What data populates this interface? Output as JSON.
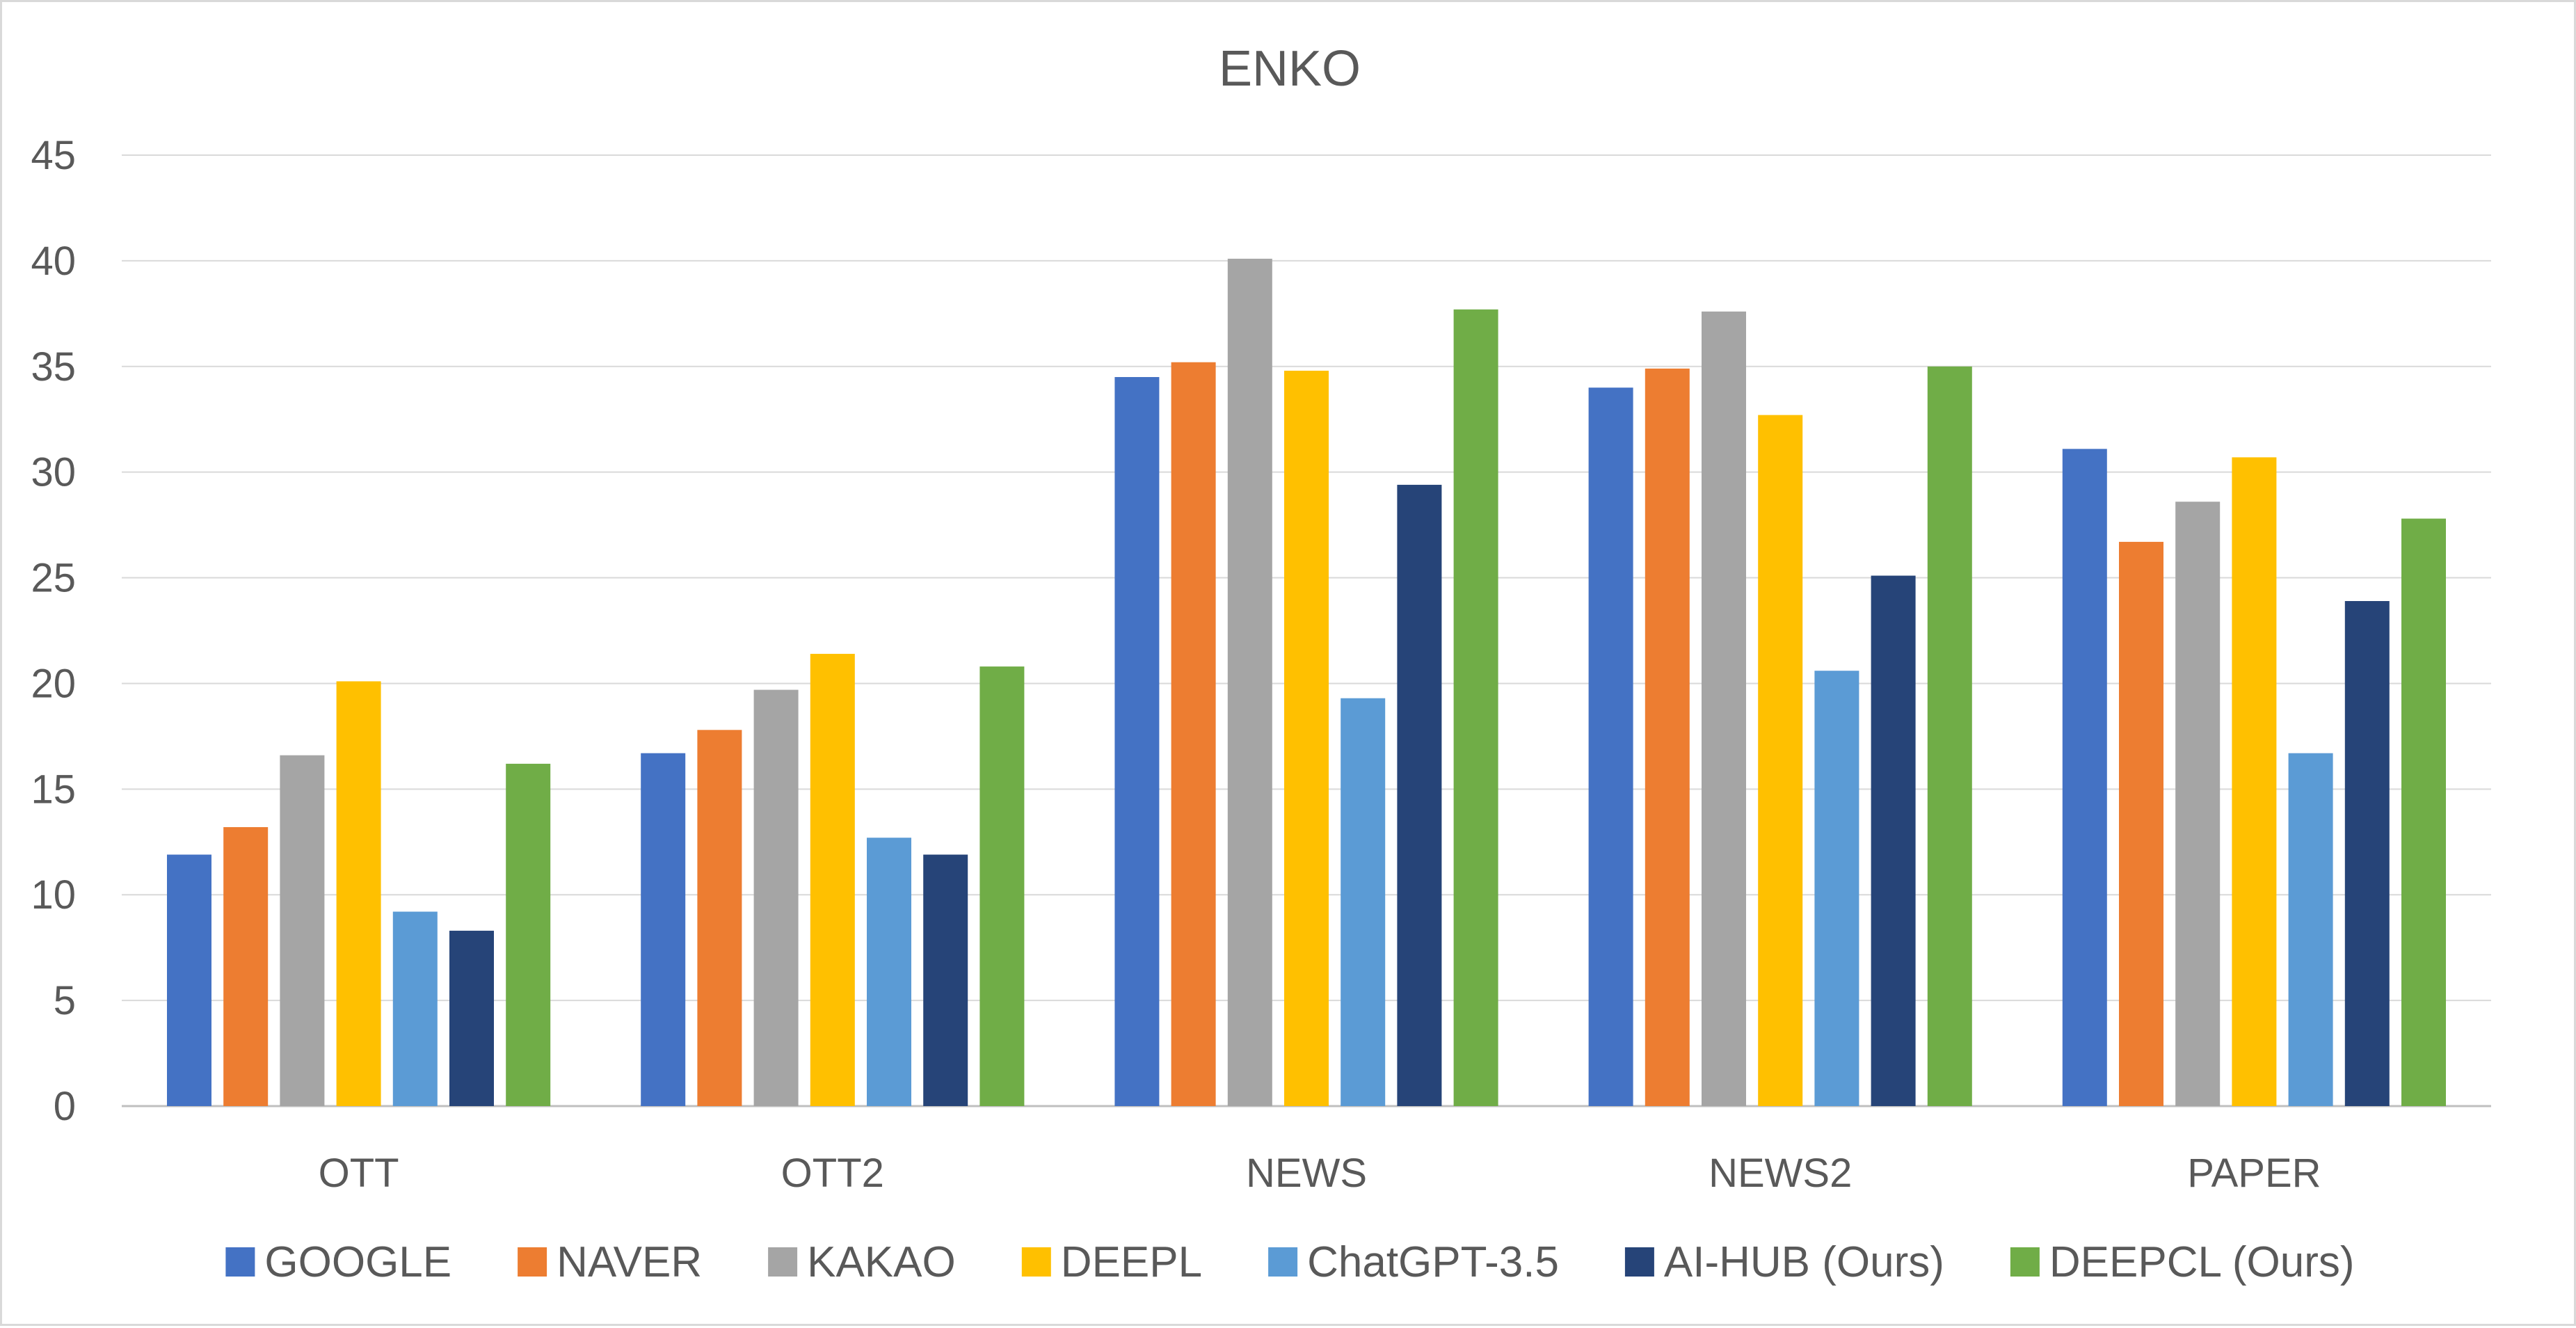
{
  "chart_data": {
    "type": "bar",
    "title": "ENKO",
    "xlabel": "",
    "ylabel": "",
    "ylim": [
      0,
      45
    ],
    "y_ticks": [
      0,
      5,
      10,
      15,
      20,
      25,
      30,
      35,
      40,
      45
    ],
    "grid": true,
    "legend_position": "bottom",
    "categories": [
      "OTT",
      "OTT2",
      "NEWS",
      "NEWS2",
      "PAPER"
    ],
    "series": [
      {
        "name": "GOOGLE",
        "color": "#4472C4",
        "values": [
          11.9,
          16.7,
          34.5,
          34.0,
          31.1
        ]
      },
      {
        "name": "NAVER",
        "color": "#ED7D31",
        "values": [
          13.2,
          17.8,
          35.2,
          34.9,
          26.7
        ]
      },
      {
        "name": "KAKAO",
        "color": "#A5A5A5",
        "values": [
          16.6,
          19.7,
          40.1,
          37.6,
          28.6
        ]
      },
      {
        "name": "DEEPL",
        "color": "#FFC000",
        "values": [
          20.1,
          21.4,
          34.8,
          32.7,
          30.7
        ]
      },
      {
        "name": "ChatGPT-3.5",
        "color": "#5B9BD5",
        "values": [
          9.2,
          12.7,
          19.3,
          20.6,
          16.7
        ]
      },
      {
        "name": "AI-HUB (Ours)",
        "color": "#264478",
        "values": [
          8.3,
          11.9,
          29.4,
          25.1,
          23.9
        ]
      },
      {
        "name": "DEEPCL (Ours)",
        "color": "#70AD47",
        "values": [
          16.2,
          20.8,
          37.7,
          35.0,
          27.8
        ]
      }
    ]
  }
}
